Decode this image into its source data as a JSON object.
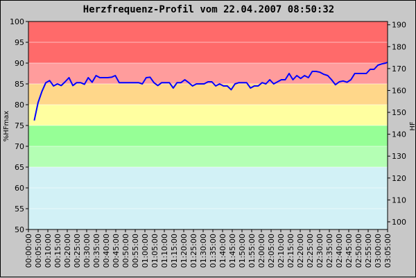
{
  "chart_data": {
    "type": "line",
    "title": "Herzfrequenz-Profil vom 22.04.2007 08:50:32",
    "ylabel_left": "%HFmax",
    "ylabel_right": "HF",
    "ylim_left": [
      50,
      100
    ],
    "ylim_right": [
      96.5,
      191.5
    ],
    "yticks_left": [
      "50",
      "55",
      "60",
      "65",
      "70",
      "75",
      "80",
      "85",
      "90",
      "95",
      "100"
    ],
    "yticks_right": [
      "100",
      "110",
      "120",
      "130",
      "140",
      "150",
      "160",
      "170",
      "180",
      "190"
    ],
    "xlim": [
      0,
      186
    ],
    "xticks": [
      "00:00:00",
      "00:05:00",
      "00:10:00",
      "00:15:00",
      "00:20:00",
      "00:25:00",
      "00:30:00",
      "00:35:00",
      "00:40:00",
      "00:45:00",
      "00:50:00",
      "00:55:00",
      "01:00:00",
      "01:05:00",
      "01:10:00",
      "01:15:00",
      "01:20:00",
      "01:25:00",
      "01:30:00",
      "01:35:00",
      "01:40:00",
      "01:45:00",
      "01:50:00",
      "01:55:00",
      "02:00:00",
      "02:05:00",
      "02:10:00",
      "02:15:00",
      "02:20:00",
      "02:25:00",
      "02:30:00",
      "02:35:00",
      "02:40:00",
      "02:45:00",
      "02:50:00",
      "02:55:00",
      "03:00:00",
      "03:05:00"
    ],
    "zones": [
      {
        "from": 50,
        "to": 65,
        "color": "#d2f1f6"
      },
      {
        "from": 65,
        "to": 70,
        "color": "#b4ffb4"
      },
      {
        "from": 70,
        "to": 75,
        "color": "#96ff96"
      },
      {
        "from": 75,
        "to": 80,
        "color": "#ffffa0"
      },
      {
        "from": 80,
        "to": 85,
        "color": "#ffd78a"
      },
      {
        "from": 85,
        "to": 90,
        "color": "#ff9c9c"
      },
      {
        "from": 90,
        "to": 100,
        "color": "#ff6a6a"
      }
    ],
    "grid": true,
    "line_color": "#0000ff",
    "series": [
      {
        "x": [
          3,
          5,
          7,
          9,
          11,
          13,
          15,
          17,
          19,
          21,
          23,
          25,
          27,
          29,
          31,
          33,
          35,
          37,
          39,
          41,
          43,
          45,
          47,
          49,
          51,
          53,
          55,
          57,
          59,
          61,
          63,
          65,
          67,
          69,
          71,
          73,
          75,
          77,
          79,
          81,
          83,
          85,
          87,
          89,
          91,
          93,
          95,
          97,
          99,
          101,
          103,
          105,
          107,
          109,
          111,
          113,
          115,
          117,
          119,
          121,
          123,
          125,
          127,
          129,
          131,
          133,
          135,
          137,
          139,
          141,
          143,
          145,
          147,
          149,
          151,
          153,
          155,
          157,
          159,
          161,
          163,
          165,
          167,
          169,
          171,
          173,
          175,
          177,
          179,
          181,
          183,
          185,
          186
        ],
        "y": [
          76.2,
          80.5,
          83.2,
          85.3,
          85.8,
          84.5,
          85.0,
          84.6,
          85.5,
          86.5,
          84.6,
          85.3,
          85.3,
          84.9,
          86.5,
          85.4,
          87.0,
          86.5,
          86.5,
          86.5,
          86.6,
          87.0,
          85.3,
          85.3,
          85.3,
          85.3,
          85.3,
          85.3,
          85.0,
          86.5,
          86.6,
          85.3,
          84.6,
          85.3,
          85.3,
          85.3,
          84.0,
          85.3,
          85.3,
          86.0,
          85.3,
          84.5,
          85.0,
          85.0,
          85.0,
          85.5,
          85.5,
          84.5,
          85.0,
          84.5,
          84.5,
          83.6,
          85.0,
          85.3,
          85.3,
          85.3,
          84.0,
          84.5,
          84.5,
          85.3,
          85.0,
          86.0,
          85.0,
          85.5,
          86.0,
          86.0,
          87.5,
          86.0,
          87.0,
          86.3,
          87.0,
          86.5,
          88.0,
          88.0,
          87.8,
          87.3,
          87.0,
          86.0,
          84.8,
          85.5,
          85.7,
          85.4,
          86.0,
          87.5,
          87.5,
          87.5,
          87.5,
          88.5,
          88.5,
          89.5,
          89.8,
          90.0,
          90.2
        ]
      }
    ]
  }
}
